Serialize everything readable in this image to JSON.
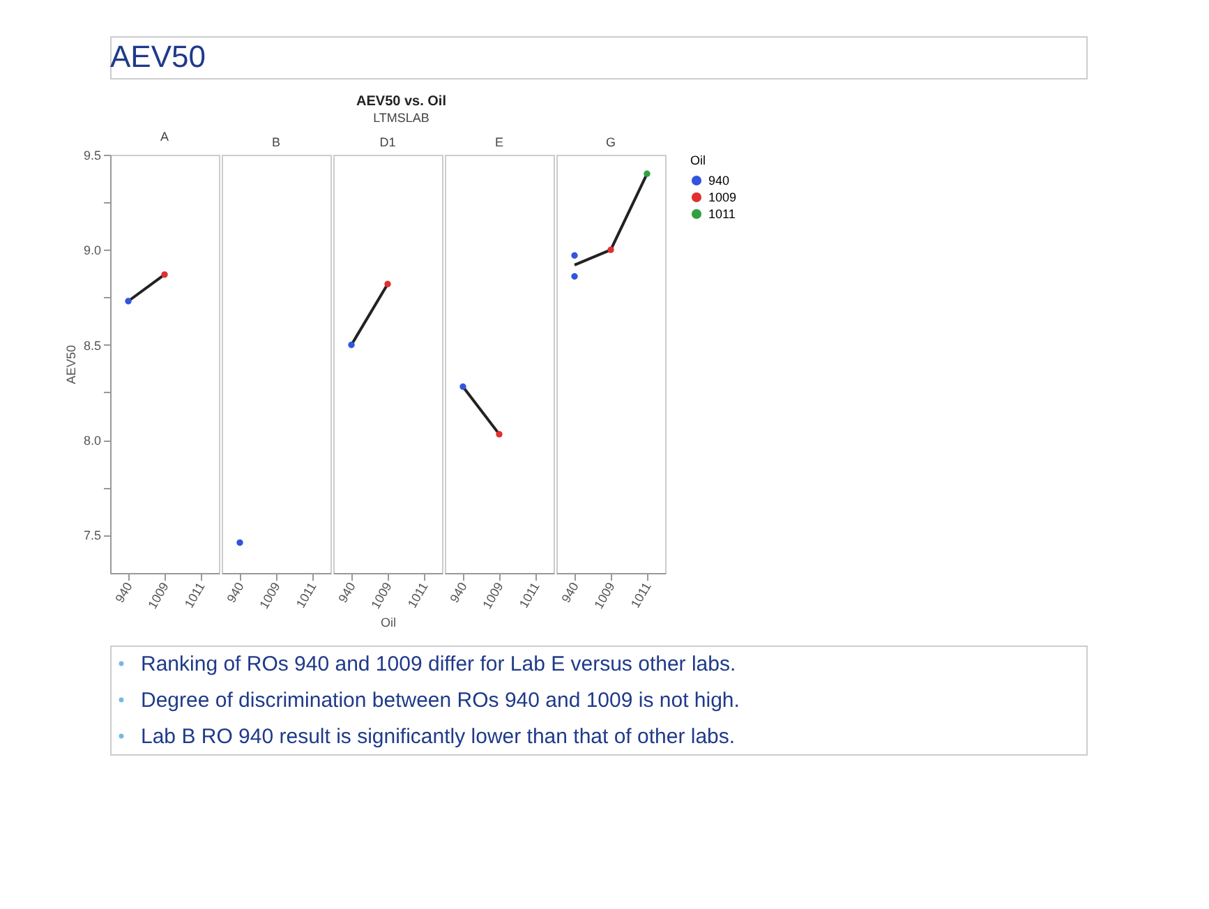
{
  "chart_data": [
    {
      "type": "other",
      "title": "AEV50",
      "subtitle": "AEV50 vs. Oil",
      "annotations": [
        "LTMSLAB",
        "Ranking of ROs 940 and 1009 differ for Lab E versus other labs.",
        "Degree of discrimination between ROs 940 and 1009 is not high.",
        "Lab B RO 940 result is significantly lower than that of other labs."
      ]
    },
    {
      "type": "scatter",
      "title": "A",
      "categories": [
        "940",
        "1009",
        "1011"
      ],
      "ylabel": "AEV50",
      "ylim": [
        7.3,
        9.5
      ],
      "yticks": [
        7.5,
        {
          "value": 7.75,
          "label": null
        },
        {
          "value": 8,
          "label": "8.0"
        },
        {
          "value": 8.25,
          "label": null
        },
        8.5,
        {
          "value": 8.75,
          "label": null
        },
        {
          "value": 9,
          "label": "9.0"
        },
        {
          "value": 9.25,
          "label": null
        },
        9.5
      ],
      "marker": "circle",
      "grid": false,
      "series": [
        {
          "color": "#3355dd",
          "values": [
            8.73,
            null,
            null
          ]
        },
        {
          "color": "#e03030",
          "values": [
            null,
            8.87,
            null
          ]
        },
        {
          "type": "line",
          "color": "#222222",
          "marker": "none",
          "values": [
            8.73,
            8.87,
            null
          ]
        }
      ]
    },
    {
      "type": "scatter",
      "title": "B",
      "categories": [
        "940",
        "1009",
        "1011"
      ],
      "ylim": [
        7.3,
        9.5
      ],
      "tick_labels": "x",
      "marker": "circle",
      "grid": false,
      "series": [
        {
          "color": "#3355dd",
          "values": [
            7.46,
            null,
            null
          ]
        }
      ]
    },
    {
      "type": "scatter",
      "title": "D1",
      "categories": [
        "940",
        "1009",
        "1011"
      ],
      "xlabel": "Oil",
      "ylim": [
        7.3,
        9.5
      ],
      "tick_labels": "x",
      "marker": "circle",
      "grid": false,
      "series": [
        {
          "color": "#3355dd",
          "values": [
            8.5,
            null,
            null
          ]
        },
        {
          "color": "#e03030",
          "values": [
            null,
            8.82,
            null
          ]
        },
        {
          "type": "line",
          "color": "#222222",
          "marker": "none",
          "values": [
            8.5,
            8.82,
            null
          ]
        }
      ]
    },
    {
      "type": "scatter",
      "title": "E",
      "categories": [
        "940",
        "1009",
        "1011"
      ],
      "ylim": [
        7.3,
        9.5
      ],
      "tick_labels": "x",
      "marker": "circle",
      "grid": false,
      "series": [
        {
          "color": "#3355dd",
          "values": [
            8.28,
            null,
            null
          ]
        },
        {
          "color": "#e03030",
          "values": [
            null,
            8.03,
            null
          ]
        },
        {
          "type": "line",
          "color": "#222222",
          "marker": "none",
          "values": [
            8.28,
            8.03,
            null
          ]
        }
      ]
    },
    {
      "type": "scatter",
      "title": "G",
      "categories": [
        "940",
        "1009",
        "1011"
      ],
      "ylim": [
        7.3,
        9.5
      ],
      "tick_labels": "x",
      "marker": "circle",
      "grid": false,
      "legend": "top right",
      "legend_title": "Oil",
      "series": [
        {
          "name": "940",
          "color": "#3355dd",
          "x": [
            "940",
            "940"
          ],
          "values": [
            8.97,
            8.86
          ]
        },
        {
          "name": "1009",
          "color": "#e03030",
          "values": [
            null,
            9.0,
            null
          ]
        },
        {
          "name": "1011",
          "color": "#30a040",
          "values": [
            null,
            null,
            9.4
          ]
        },
        {
          "type": "line",
          "color": "#222222",
          "marker": "none",
          "values": [
            8.92,
            9.0,
            9.4
          ]
        }
      ]
    }
  ]
}
